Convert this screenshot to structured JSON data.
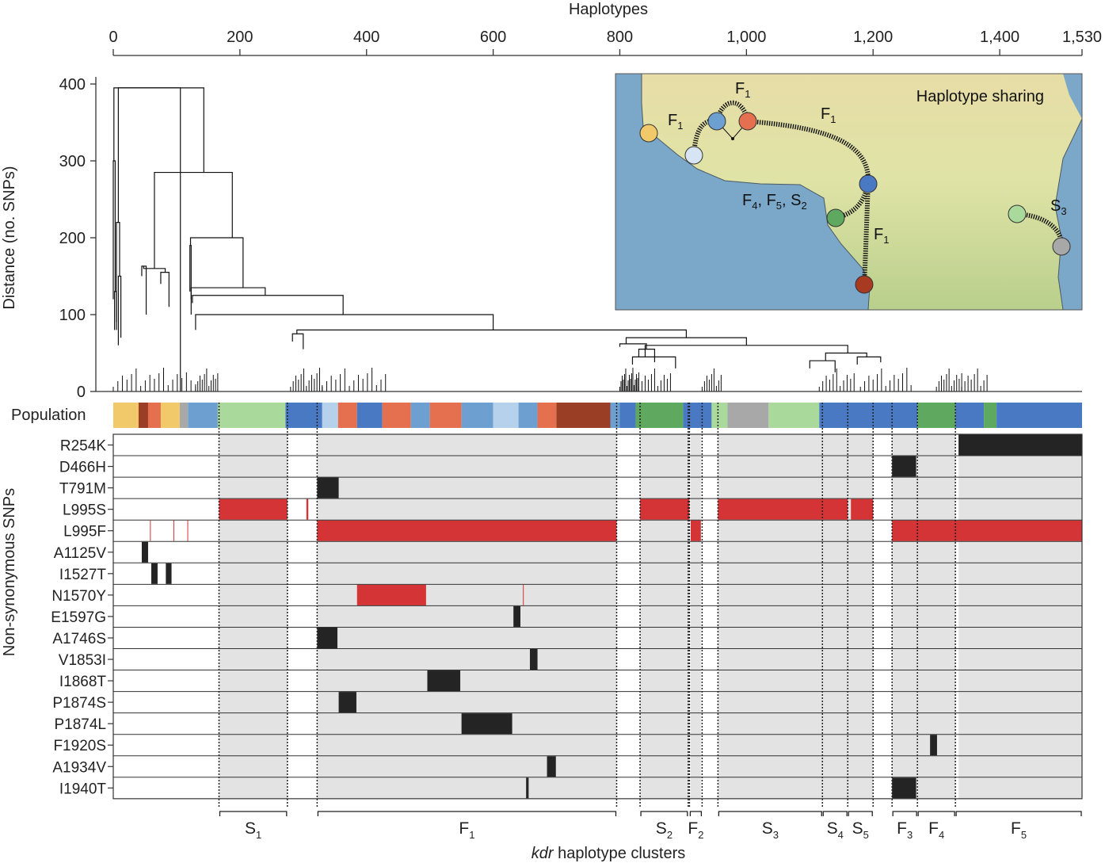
{
  "chart_data": {
    "type": "dendrogram",
    "top_axis": {
      "title": "Haplotypes",
      "domain": [
        0,
        1530
      ],
      "ticks": [
        {
          "value": 0,
          "label": "0"
        },
        {
          "value": 200,
          "label": "200"
        },
        {
          "value": 400,
          "label": "400"
        },
        {
          "value": 600,
          "label": "600"
        },
        {
          "value": 800,
          "label": "800"
        },
        {
          "value": 1000,
          "label": "1,000"
        },
        {
          "value": 1200,
          "label": "1,200"
        },
        {
          "value": 1400,
          "label": "1,400"
        },
        {
          "value": 1530,
          "label": "1,530"
        }
      ]
    },
    "y_axis": {
      "label": "Distance (no. SNPs)",
      "ylim": [
        0,
        400
      ],
      "ticks": [
        0,
        100,
        200,
        300,
        400
      ]
    },
    "dendrogram_links": [
      [
        40,
        395,
        1,
        300,
        106,
        0
      ],
      [
        1,
        300,
        0,
        120,
        3,
        130
      ],
      [
        3,
        130,
        2,
        80,
        5,
        90
      ],
      [
        106,
        395,
        8,
        220,
        143,
        285
      ],
      [
        8,
        220,
        5,
        80,
        10,
        150
      ],
      [
        10,
        150,
        8,
        60,
        12,
        70
      ],
      [
        143,
        285,
        65,
        160,
        188,
        200
      ],
      [
        65,
        160,
        48,
        163,
        82,
        155
      ],
      [
        48,
        163,
        45,
        150,
        52,
        100
      ],
      [
        82,
        155,
        75,
        140,
        88,
        110
      ],
      [
        188,
        200,
        122,
        190,
        205,
        135
      ],
      [
        122,
        190,
        121,
        130,
        123,
        100
      ],
      [
        205,
        135,
        123,
        120,
        240,
        125
      ],
      [
        240,
        125,
        125,
        115,
        363,
        100
      ],
      [
        363,
        100,
        130,
        80,
        600,
        80
      ],
      [
        600,
        80,
        290,
        75,
        905,
        70
      ],
      [
        290,
        75,
        283,
        65,
        300,
        55
      ],
      [
        905,
        70,
        810,
        62,
        1000,
        60
      ],
      [
        810,
        62,
        800,
        58,
        842,
        55
      ],
      [
        842,
        55,
        830,
        45,
        855,
        38
      ],
      [
        1000,
        60,
        840,
        45,
        1160,
        50
      ],
      [
        840,
        45,
        820,
        35,
        888,
        30
      ],
      [
        1160,
        50,
        1125,
        40,
        1190,
        45
      ],
      [
        1125,
        40,
        1100,
        30,
        1140,
        25
      ],
      [
        1190,
        45,
        1175,
        35,
        1212,
        38
      ]
    ],
    "population_strip": [
      {
        "from": 0,
        "to": 40,
        "color": "#f2c96a"
      },
      {
        "from": 40,
        "to": 55,
        "color": "#9a3e26"
      },
      {
        "from": 55,
        "to": 75,
        "color": "#e4704f"
      },
      {
        "from": 75,
        "to": 105,
        "color": "#f2c96a"
      },
      {
        "from": 105,
        "to": 118,
        "color": "#a8a8a8"
      },
      {
        "from": 118,
        "to": 165,
        "color": "#6e9fd1"
      },
      {
        "from": 165,
        "to": 272,
        "color": "#a9d99b"
      },
      {
        "from": 272,
        "to": 330,
        "color": "#4a79c4"
      },
      {
        "from": 330,
        "to": 355,
        "color": "#b6d1ec"
      },
      {
        "from": 355,
        "to": 385,
        "color": "#e4704f"
      },
      {
        "from": 385,
        "to": 425,
        "color": "#4a79c4"
      },
      {
        "from": 425,
        "to": 470,
        "color": "#e4704f"
      },
      {
        "from": 470,
        "to": 500,
        "color": "#6e9fd1"
      },
      {
        "from": 500,
        "to": 550,
        "color": "#e4704f"
      },
      {
        "from": 550,
        "to": 600,
        "color": "#6e9fd1"
      },
      {
        "from": 600,
        "to": 640,
        "color": "#b6d1ec"
      },
      {
        "from": 640,
        "to": 670,
        "color": "#6e9fd1"
      },
      {
        "from": 670,
        "to": 700,
        "color": "#e4704f"
      },
      {
        "from": 700,
        "to": 785,
        "color": "#9a3e26"
      },
      {
        "from": 785,
        "to": 800,
        "color": "#6e9fd1"
      },
      {
        "from": 800,
        "to": 825,
        "color": "#4a79c4"
      },
      {
        "from": 825,
        "to": 900,
        "color": "#5fa860"
      },
      {
        "from": 900,
        "to": 945,
        "color": "#4a79c4"
      },
      {
        "from": 945,
        "to": 970,
        "color": "#a9d99b"
      },
      {
        "from": 970,
        "to": 1035,
        "color": "#a8a8a8"
      },
      {
        "from": 1035,
        "to": 1115,
        "color": "#a9d99b"
      },
      {
        "from": 1115,
        "to": 1270,
        "color": "#4a79c4"
      },
      {
        "from": 1270,
        "to": 1330,
        "color": "#5fa860"
      },
      {
        "from": 1330,
        "to": 1375,
        "color": "#4a79c4"
      },
      {
        "from": 1375,
        "to": 1395,
        "color": "#5fa860"
      },
      {
        "from": 1395,
        "to": 1530,
        "color": "#4a79c4"
      }
    ],
    "population_label": "Population",
    "snp_axis_label": "Non-synonymous SNPs",
    "snps": [
      {
        "label": "R254K",
        "carriers": [
          [
            1335,
            1530
          ]
        ],
        "carrier_color": "#242424"
      },
      {
        "label": "D466H",
        "carriers": [
          [
            1230,
            1268
          ]
        ],
        "carrier_color": "#242424"
      },
      {
        "label": "T791M",
        "carriers": [
          [
            322,
            356
          ]
        ],
        "carrier_color": "#242424"
      },
      {
        "label": "L995S",
        "carriers": [
          [
            167,
            275
          ],
          [
            305,
            308
          ],
          [
            832,
            910
          ],
          [
            955,
            1160
          ],
          [
            1165,
            1200
          ]
        ],
        "carrier_color": "#d43436"
      },
      {
        "label": "L995F",
        "carriers": [
          [
            58,
            59
          ],
          [
            95,
            96
          ],
          [
            117,
            118
          ],
          [
            322,
            795
          ],
          [
            912,
            928
          ],
          [
            1230,
            1530
          ]
        ],
        "carrier_color": "#d43436"
      },
      {
        "label": "A1125V",
        "carriers": [
          [
            45,
            55
          ]
        ],
        "carrier_color": "#242424"
      },
      {
        "label": "I1527T",
        "carriers": [
          [
            60,
            70
          ],
          [
            83,
            92
          ]
        ],
        "carrier_color": "#242424"
      },
      {
        "label": "N1570Y",
        "carriers": [
          [
            385,
            494
          ],
          [
            647,
            648
          ]
        ],
        "carrier_color": "#d43436"
      },
      {
        "label": "E1597G",
        "carriers": [
          [
            632,
            643
          ]
        ],
        "carrier_color": "#242424"
      },
      {
        "label": "A1746S",
        "carriers": [
          [
            322,
            354
          ]
        ],
        "carrier_color": "#242424"
      },
      {
        "label": "V1853I",
        "carriers": [
          [
            658,
            670
          ]
        ],
        "carrier_color": "#242424"
      },
      {
        "label": "I1868T",
        "carriers": [
          [
            496,
            548
          ]
        ],
        "carrier_color": "#242424"
      },
      {
        "label": "P1874S",
        "carriers": [
          [
            356,
            384
          ]
        ],
        "carrier_color": "#242424"
      },
      {
        "label": "P1874L",
        "carriers": [
          [
            550,
            630
          ]
        ],
        "carrier_color": "#242424"
      },
      {
        "label": "F1920S",
        "carriers": [
          [
            1290,
            1301
          ]
        ],
        "carrier_color": "#242424"
      },
      {
        "label": "A1934V",
        "carriers": [
          [
            685,
            699
          ]
        ],
        "carrier_color": "#242424"
      },
      {
        "label": "I1940T",
        "carriers": [
          [
            652,
            656
          ],
          [
            1230,
            1268
          ]
        ],
        "carrier_color": "#242424"
      }
    ],
    "cluster_regions": [
      [
        167,
        275
      ],
      [
        322,
        795
      ],
      [
        832,
        910
      ],
      [
        912,
        928
      ],
      [
        955,
        1160
      ],
      [
        1160,
        1200
      ],
      [
        1230,
        1270
      ],
      [
        1270,
        1330
      ],
      [
        1335,
        1530
      ]
    ],
    "gaps": [
      [
        275,
        322
      ],
      [
        795,
        832
      ],
      [
        1200,
        1230
      ]
    ],
    "cluster_axis_label": "kdr haplotype clusters",
    "clusters": [
      {
        "base": "S",
        "sub": "1",
        "from": 167,
        "to": 275
      },
      {
        "base": "F",
        "sub": "1",
        "from": 322,
        "to": 795
      },
      {
        "base": "S",
        "sub": "2",
        "from": 832,
        "to": 908
      },
      {
        "base": "F",
        "sub": "2",
        "from": 910,
        "to": 930
      },
      {
        "base": "S",
        "sub": "3",
        "from": 955,
        "to": 1120
      },
      {
        "base": "S",
        "sub": "4",
        "from": 1120,
        "to": 1160
      },
      {
        "base": "S",
        "sub": "5",
        "from": 1160,
        "to": 1200
      },
      {
        "base": "F",
        "sub": "3",
        "from": 1230,
        "to": 1270
      },
      {
        "base": "F",
        "sub": "4",
        "from": 1270,
        "to": 1330
      },
      {
        "base": "F",
        "sub": "5",
        "from": 1330,
        "to": 1530
      }
    ],
    "colors": {
      "background_cell": "#e3e3e3",
      "noncarrier_gap": "#ffffff",
      "red": "#d43436",
      "black": "#242424"
    }
  },
  "map_inset": {
    "title": "Haplotype sharing",
    "nodes": [
      {
        "id": "yellow",
        "color": "#f2c96a"
      },
      {
        "id": "pale-blue",
        "color": "#d6e4f4"
      },
      {
        "id": "mid-blue",
        "color": "#6e9fd1"
      },
      {
        "id": "orange-red",
        "color": "#e4704f"
      },
      {
        "id": "blue",
        "color": "#4a79c4"
      },
      {
        "id": "green",
        "color": "#5fa860"
      },
      {
        "id": "dark-red",
        "color": "#a93a22"
      },
      {
        "id": "light-green",
        "color": "#a9d99b"
      },
      {
        "id": "grey",
        "color": "#a8a8a8"
      }
    ],
    "labels": [
      {
        "base": "F",
        "sub": "1"
      },
      {
        "base": "F",
        "sub": "1"
      },
      {
        "base": "F",
        "sub": "1"
      },
      {
        "base": "F",
        "sub": "1"
      },
      {
        "parts": [
          "F",
          "4",
          ", F",
          "5",
          ", S",
          "2"
        ]
      },
      {
        "base": "S",
        "sub": "3"
      }
    ]
  }
}
